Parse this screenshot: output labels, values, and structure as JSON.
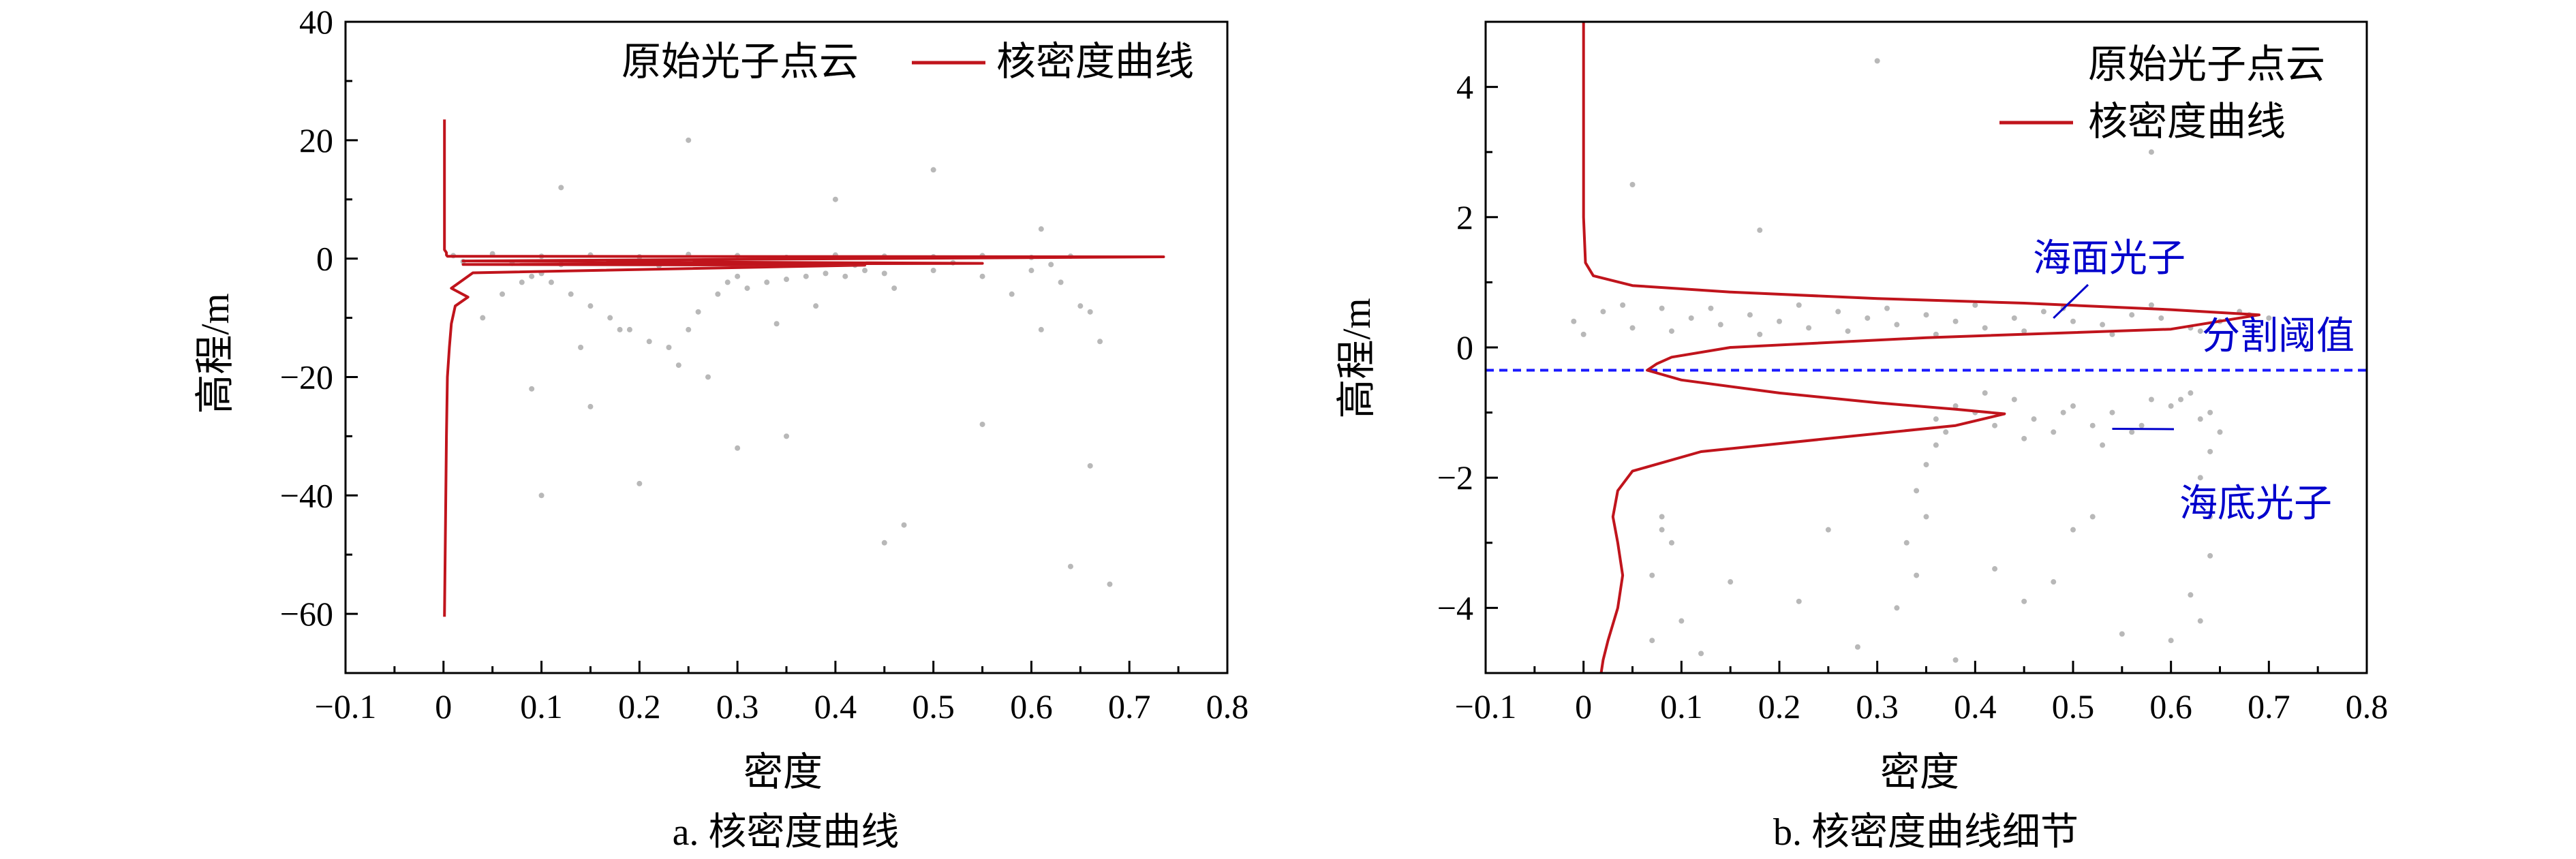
{
  "colors": {
    "kde": "#c0141c",
    "points": "#b8b8b8",
    "annotation": "#0000cc",
    "threshold_line": "#1a1aff",
    "axis": "#000000"
  },
  "chart_data": [
    {
      "type": "scatter",
      "panel": "a",
      "caption": "a. 核密度曲线",
      "xlabel": "密度",
      "ylabel": "高程/m",
      "xlim": [
        -0.1,
        0.8
      ],
      "ylim": [
        -70,
        40
      ],
      "xticks": [
        -0.1,
        0,
        0.1,
        0.2,
        0.3,
        0.4,
        0.5,
        0.6,
        0.7,
        0.8
      ],
      "xtick_labels": [
        "−0.1",
        "0",
        "0.1",
        "0.2",
        "0.3",
        "0.4",
        "0.5",
        "0.6",
        "0.7",
        "0.8"
      ],
      "yticks": [
        -60,
        -40,
        -20,
        0,
        20,
        40
      ],
      "ytick_labels": [
        "−60",
        "−40",
        "−20",
        "0",
        "20",
        "40"
      ],
      "legend": {
        "position": "top-right",
        "items": [
          "原始光子点云",
          "核密度曲线"
        ]
      },
      "series": [
        {
          "name": "核密度曲线",
          "kind": "line",
          "x": [
            0.001,
            0.001,
            0.003,
            0.003,
            0.004,
            0.735,
            0.02,
            0.55,
            0.02,
            0.43,
            0.03,
            0.008,
            0.025,
            0.012,
            0.008,
            0.006,
            0.004,
            0.003,
            0.002,
            0.001
          ],
          "y": [
            23.5,
            1.5,
            1.0,
            0.6,
            0.4,
            0.3,
            -0.4,
            -0.8,
            -1.0,
            -1.1,
            -2.4,
            -5.0,
            -6.5,
            -8.0,
            -11.0,
            -15.0,
            -20.0,
            -30.0,
            -45.0,
            -60.5
          ]
        },
        {
          "name": "原始光子点云",
          "kind": "scatter",
          "x": [
            0.01,
            0.05,
            0.1,
            0.15,
            0.2,
            0.25,
            0.3,
            0.35,
            0.4,
            0.45,
            0.5,
            0.55,
            0.6,
            0.64,
            0.02,
            0.07,
            0.12,
            0.22,
            0.32,
            0.42,
            0.52,
            0.62,
            0.08,
            0.09,
            0.1,
            0.11,
            0.13,
            0.15,
            0.17,
            0.19,
            0.21,
            0.23,
            0.25,
            0.26,
            0.28,
            0.29,
            0.3,
            0.31,
            0.33,
            0.35,
            0.37,
            0.39,
            0.41,
            0.43,
            0.45,
            0.5,
            0.55,
            0.6,
            0.63,
            0.65,
            0.66,
            0.04,
            0.06,
            0.14,
            0.18,
            0.24,
            0.27,
            0.34,
            0.38,
            0.46,
            0.58,
            0.61,
            0.67,
            0.12,
            0.25,
            0.4,
            0.5,
            0.61,
            0.15,
            0.35,
            0.55,
            0.66,
            0.1,
            0.2,
            0.47,
            0.09,
            0.3,
            0.45,
            0.64,
            0.68
          ],
          "y": [
            0.5,
            0.8,
            0.4,
            0.6,
            0.3,
            0.7,
            0.5,
            0.2,
            0.6,
            0.4,
            0.3,
            0.5,
            0.2,
            0.4,
            -0.5,
            -0.8,
            -1.0,
            -1.2,
            -0.9,
            -1.1,
            -0.7,
            -1.0,
            -4.0,
            -3.0,
            -2.5,
            -4.0,
            -6.0,
            -8.0,
            -10.0,
            -12.0,
            -14.0,
            -15.0,
            -12.0,
            -9.0,
            -6.0,
            -4.0,
            -3.0,
            -5.0,
            -4.0,
            -3.5,
            -3.0,
            -2.5,
            -3.0,
            -2.0,
            -2.5,
            -2.0,
            -3.0,
            -2.0,
            -4.0,
            -8.0,
            -9.0,
            -10.0,
            -6.0,
            -15.0,
            -12.0,
            -18.0,
            -20.0,
            -11.0,
            -8.0,
            -5.0,
            -6.0,
            -12.0,
            -14.0,
            12.0,
            20.0,
            10.0,
            15.0,
            5.0,
            -25.0,
            -30.0,
            -28.0,
            -35.0,
            -40.0,
            -38.0,
            -45.0,
            -22.0,
            -32.0,
            -48.0,
            -52.0,
            -55.0
          ]
        }
      ]
    },
    {
      "type": "scatter",
      "panel": "b",
      "caption": "b. 核密度曲线细节",
      "xlabel": "密度",
      "ylabel": "高程/m",
      "xlim": [
        -0.1,
        0.8
      ],
      "ylim": [
        -5,
        5
      ],
      "xticks": [
        -0.1,
        0,
        0.1,
        0.2,
        0.3,
        0.4,
        0.5,
        0.6,
        0.7,
        0.8
      ],
      "xtick_labels": [
        "−0.1",
        "0",
        "0.1",
        "0.2",
        "0.3",
        "0.4",
        "0.5",
        "0.6",
        "0.7",
        "0.8"
      ],
      "yticks": [
        -4,
        -2,
        0,
        2,
        4
      ],
      "ytick_labels": [
        "−4",
        "−2",
        "0",
        "2",
        "4"
      ],
      "legend": {
        "position": "top-right",
        "items": [
          "原始光子点云",
          "核密度曲线"
        ]
      },
      "threshold": {
        "y": -0.35,
        "label": "分割阈值"
      },
      "annotations": [
        {
          "text": "海面光子",
          "target": [
            0.48,
            0.45
          ]
        },
        {
          "text": "海底光子",
          "target": [
            0.54,
            -1.25
          ]
        }
      ],
      "series": [
        {
          "name": "核密度曲线",
          "kind": "line",
          "x": [
            0.0,
            0.0,
            0.002,
            0.01,
            0.05,
            0.15,
            0.3,
            0.45,
            0.6,
            0.69,
            0.6,
            0.35,
            0.15,
            0.09,
            0.075,
            0.065,
            0.1,
            0.2,
            0.3,
            0.38,
            0.43,
            0.38,
            0.25,
            0.12,
            0.05,
            0.035,
            0.03,
            0.035,
            0.04,
            0.035,
            0.025,
            0.02,
            0.018
          ],
          "y": [
            5.0,
            2.0,
            1.3,
            1.1,
            0.95,
            0.85,
            0.75,
            0.68,
            0.58,
            0.5,
            0.28,
            0.15,
            0.0,
            -0.15,
            -0.25,
            -0.35,
            -0.5,
            -0.7,
            -0.85,
            -0.95,
            -1.02,
            -1.2,
            -1.4,
            -1.6,
            -1.9,
            -2.2,
            -2.6,
            -3.0,
            -3.5,
            -4.0,
            -4.5,
            -4.8,
            -5.0
          ]
        },
        {
          "name": "原始光子点云",
          "kind": "scatter",
          "x": [
            -0.01,
            0.02,
            0.05,
            0.08,
            0.11,
            0.14,
            0.17,
            0.2,
            0.23,
            0.26,
            0.29,
            0.32,
            0.35,
            0.38,
            0.41,
            0.44,
            0.47,
            0.5,
            0.53,
            0.56,
            0.59,
            0.62,
            0.65,
            0.68,
            0.7,
            0.0,
            0.04,
            0.09,
            0.13,
            0.18,
            0.22,
            0.27,
            0.31,
            0.36,
            0.4,
            0.45,
            0.49,
            0.54,
            0.58,
            0.63,
            0.67,
            0.36,
            0.38,
            0.4,
            0.42,
            0.44,
            0.46,
            0.48,
            0.5,
            0.52,
            0.54,
            0.56,
            0.58,
            0.6,
            0.62,
            0.63,
            0.37,
            0.41,
            0.45,
            0.49,
            0.53,
            0.57,
            0.61,
            0.64,
            0.33,
            0.34,
            0.35,
            0.35,
            0.36,
            0.32,
            0.34,
            0.63,
            0.64,
            0.64,
            0.65,
            0.64,
            0.63,
            0.62,
            0.07,
            0.08,
            0.07,
            0.09,
            0.08,
            0.1,
            0.25,
            0.42,
            0.5,
            0.55,
            0.48,
            0.22,
            0.15,
            0.28,
            0.45,
            0.6,
            0.12,
            0.38,
            0.52,
            0.05,
            0.3,
            0.58,
            0.18
          ],
          "y": [
            0.4,
            0.55,
            0.3,
            0.6,
            0.45,
            0.35,
            0.5,
            0.4,
            0.3,
            0.55,
            0.45,
            0.35,
            0.5,
            0.4,
            0.3,
            0.45,
            0.55,
            0.4,
            0.35,
            0.5,
            0.45,
            0.3,
            0.4,
            0.5,
            0.45,
            0.2,
            0.65,
            0.25,
            0.6,
            0.2,
            0.65,
            0.25,
            0.6,
            0.2,
            0.65,
            0.25,
            0.6,
            0.2,
            0.65,
            0.25,
            0.55,
            -1.1,
            -0.9,
            -1.0,
            -1.2,
            -0.8,
            -1.1,
            -1.3,
            -0.9,
            -1.2,
            -1.0,
            -1.3,
            -0.8,
            -0.9,
            -0.7,
            -1.1,
            -1.3,
            -0.7,
            -1.4,
            -1.0,
            -1.5,
            -1.2,
            -0.8,
            -1.0,
            -3.0,
            -2.2,
            -1.8,
            -2.6,
            -1.5,
            -4.0,
            -3.5,
            -2.0,
            -1.6,
            -2.6,
            -1.3,
            -3.2,
            -4.2,
            -3.8,
            -3.5,
            -2.8,
            -4.5,
            -3.0,
            -2.6,
            -4.2,
            -2.8,
            -3.4,
            -2.8,
            -4.4,
            -3.6,
            -3.9,
            -3.6,
            -4.6,
            -3.9,
            -4.5,
            -4.7,
            -4.8,
            -2.6,
            2.5,
            4.4,
            3.0,
            1.8
          ]
        }
      ]
    }
  ]
}
